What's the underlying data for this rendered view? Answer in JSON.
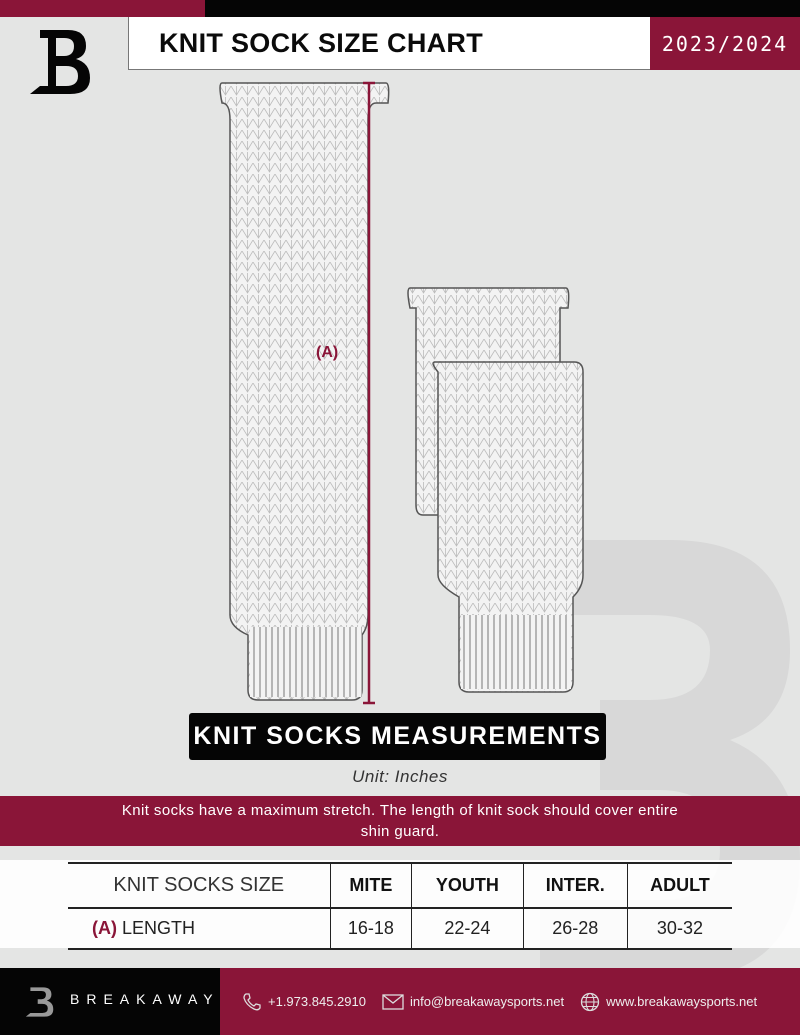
{
  "header": {
    "title": "KNIT SOCK SIZE CHART",
    "season": "2023/2024",
    "logo_letter": "B"
  },
  "diagram": {
    "measure_label": "(A)"
  },
  "measurements_label": "KNIT SOCKS MEASUREMENTS",
  "unit": "Unit: Inches",
  "note": "Knit socks have a maximum stretch. The length of knit sock should cover entire shin guard.",
  "table": {
    "headers": [
      "KNIT SOCKS SIZE",
      "MITE",
      "YOUTH",
      "INTER.",
      "ADULT"
    ],
    "rows": [
      {
        "marker": "(A)",
        "label": "LENGTH",
        "values": [
          "16-18",
          "22-24",
          "26-28",
          "30-32"
        ]
      }
    ]
  },
  "footer": {
    "brand": "BREAKAWAY",
    "phone": "+1.973.845.2910",
    "email": "info@breakawaysports.net",
    "website": "www.breakawaysports.net",
    "icons": [
      "phone-icon",
      "mail-icon",
      "globe-icon"
    ]
  },
  "colors": {
    "accent": "#8a1538",
    "dark": "#050505",
    "background": "#e4e5e4"
  }
}
